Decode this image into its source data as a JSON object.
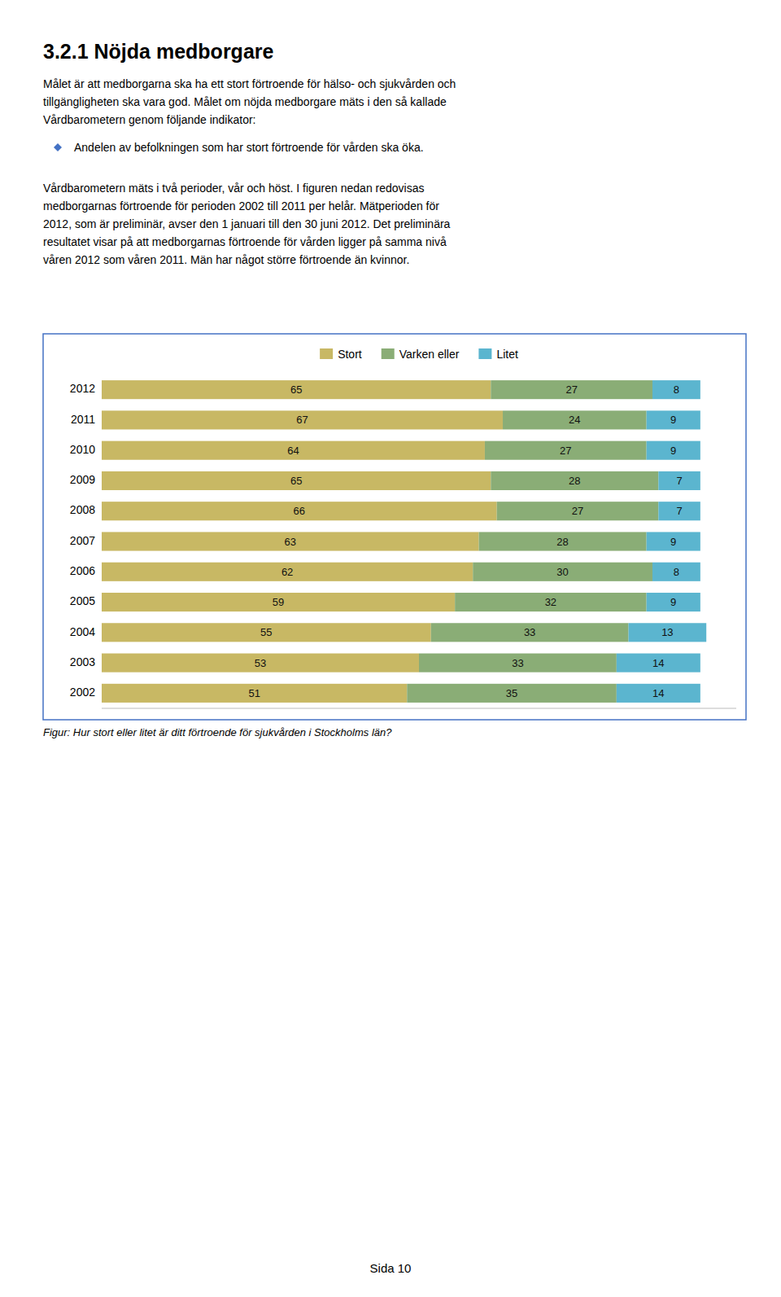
{
  "page": {
    "title": "3.2.1 Nöjda medborgare",
    "body_lines1": [
      "Målet är att medborgarna ska ha ett stort förtroende för hälso- och sjukvården och",
      "tillgängligheten ska vara god. Målet om nöjda medborgare mäts i den så kallade",
      "Vårdbarometern genom följande indikator:"
    ],
    "bullet_text": "Andelen av befolkningen som har stort förtroende för vården ska öka.",
    "body_lines2": [
      "Vårdbarometern mäts i två perioder, vår och höst. I figuren nedan redovisas",
      "medborgarnas förtroende för perioden 2002 till 2011 per helår. Mätperioden för",
      "2012, som är preliminär, avser den 1 januari till den 30 juni 2012. Det preliminära",
      "resultatet visar på att medborgarnas förtroende för vården ligger på samma nivå",
      "våren 2012 som våren 2011. Män har något större förtroende än kvinnor."
    ],
    "caption": "Figur: Hur stort eller litet är ditt förtroende för sjukvården i Stockholms län?",
    "page_text": "Sida 10"
  },
  "chart_data": {
    "type": "bar",
    "orientation": "horizontal",
    "stacked": true,
    "data_labels": true,
    "tick_labels": "y",
    "grid": false,
    "categories": [
      "2012",
      "2011",
      "2010",
      "2009",
      "2008",
      "2007",
      "2006",
      "2005",
      "2004",
      "2003",
      "2002"
    ],
    "series": [
      {
        "name": "Stort",
        "color": "#C8B864",
        "values": [
          65,
          67,
          64,
          65,
          66,
          63,
          62,
          59,
          55,
          53,
          51
        ]
      },
      {
        "name": "Varken eller",
        "color": "#8AAD76",
        "values": [
          27,
          24,
          27,
          28,
          27,
          28,
          30,
          32,
          33,
          33,
          35
        ]
      },
      {
        "name": "Litet",
        "color": "#5BB5CF",
        "values": [
          8,
          9,
          9,
          7,
          7,
          9,
          8,
          9,
          13,
          14,
          14
        ]
      }
    ],
    "xlim": [
      0,
      106
    ],
    "xticks": []
  }
}
